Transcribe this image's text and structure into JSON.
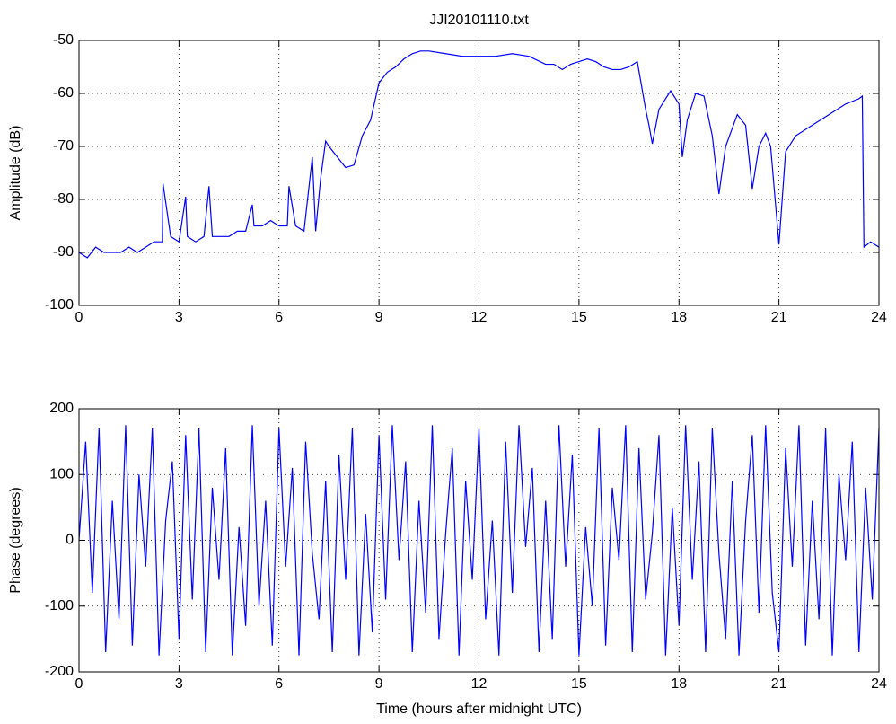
{
  "chart_data": [
    {
      "type": "line",
      "title": "JJI20101110.txt",
      "ylabel": "Amplitude (dB)",
      "color": "#0000ff",
      "grid": true,
      "x": [
        0,
        0.25,
        0.5,
        0.75,
        1,
        1.25,
        1.5,
        1.75,
        2,
        2.25,
        2.5,
        2.52,
        2.75,
        3,
        3.2,
        3.25,
        3.5,
        3.75,
        3.9,
        4,
        4.25,
        4.5,
        4.75,
        5,
        5.2,
        5.25,
        5.5,
        5.75,
        6,
        6.25,
        6.3,
        6.5,
        6.75,
        7,
        7.1,
        7.25,
        7.4,
        7.5,
        7.75,
        8,
        8.25,
        8.5,
        8.75,
        9,
        9.25,
        9.5,
        9.75,
        10,
        10.25,
        10.5,
        11,
        11.5,
        12,
        12.5,
        13,
        13.5,
        14,
        14.25,
        14.5,
        14.75,
        15,
        15.25,
        15.5,
        15.75,
        16,
        16.25,
        16.5,
        16.75,
        17,
        17.1,
        17.2,
        17.4,
        17.75,
        18,
        18.1,
        18.25,
        18.5,
        18.75,
        19,
        19.2,
        19.4,
        19.75,
        20,
        20.2,
        20.4,
        20.6,
        20.75,
        21,
        21.2,
        21.5,
        22,
        22.5,
        23,
        23.4,
        23.5,
        23.55,
        23.75,
        24
      ],
      "values": [
        -90,
        -91,
        -89,
        -90,
        -90,
        -90,
        -89,
        -90,
        -89,
        -88,
        -88,
        -77,
        -87,
        -88,
        -79.5,
        -87,
        -88,
        -87,
        -77.5,
        -87,
        -87,
        -87,
        -86,
        -86,
        -81,
        -85,
        -85,
        -84,
        -85,
        -85,
        -77.5,
        -85,
        -86,
        -72,
        -86,
        -76,
        -69,
        -70,
        -72,
        -74,
        -73.5,
        -68,
        -65,
        -58,
        -56,
        -55,
        -53.5,
        -52.5,
        -52,
        -52,
        -52.5,
        -53,
        -53,
        -53,
        -52.5,
        -53,
        -54.5,
        -54.5,
        -55.5,
        -54.5,
        -54,
        -53.5,
        -54,
        -55,
        -55.5,
        -55.5,
        -55,
        -54,
        -63,
        -66,
        -69.5,
        -63,
        -59.5,
        -62,
        -72,
        -65,
        -60,
        -60.5,
        -68,
        -79,
        -70,
        -64,
        -66,
        -78,
        -70,
        -67.5,
        -70,
        -88.5,
        -71,
        -68,
        -66,
        -64,
        -62,
        -61,
        -60.5,
        -89,
        -88,
        -89
      ],
      "xlim": [
        0,
        24
      ],
      "xticks": [
        0,
        3,
        6,
        9,
        12,
        15,
        18,
        21,
        24
      ],
      "ylim": [
        -100,
        -50
      ],
      "yticks": [
        -100,
        -90,
        -80,
        -70,
        -60,
        -50
      ]
    },
    {
      "type": "line",
      "ylabel": "Phase (degrees)",
      "xlabel": "Time (hours after midnight UTC)",
      "color": "#0000ff",
      "grid": true,
      "x": [
        0,
        0.2,
        0.4,
        0.6,
        0.8,
        1,
        1.2,
        1.4,
        1.6,
        1.8,
        2,
        2.2,
        2.4,
        2.6,
        2.8,
        3,
        3.2,
        3.4,
        3.6,
        3.8,
        4,
        4.2,
        4.4,
        4.6,
        4.8,
        5,
        5.2,
        5.4,
        5.6,
        5.8,
        6,
        6.2,
        6.4,
        6.6,
        6.8,
        7,
        7.2,
        7.4,
        7.6,
        7.8,
        8,
        8.2,
        8.4,
        8.6,
        8.8,
        9,
        9.2,
        9.4,
        9.6,
        9.8,
        10,
        10.2,
        10.4,
        10.6,
        10.8,
        11,
        11.2,
        11.4,
        11.6,
        11.8,
        12,
        12.2,
        12.4,
        12.6,
        12.8,
        13,
        13.2,
        13.4,
        13.6,
        13.8,
        14,
        14.2,
        14.4,
        14.6,
        14.8,
        15,
        15.2,
        15.4,
        15.6,
        15.8,
        16,
        16.2,
        16.4,
        16.6,
        16.8,
        17,
        17.2,
        17.4,
        17.6,
        17.8,
        18,
        18.2,
        18.4,
        18.6,
        18.8,
        19,
        19.2,
        19.4,
        19.6,
        19.8,
        20,
        20.2,
        20.4,
        20.6,
        20.8,
        21,
        21.2,
        21.4,
        21.6,
        21.8,
        22,
        22.2,
        22.4,
        22.6,
        22.8,
        23,
        23.2,
        23.4,
        23.6,
        23.8,
        24
      ],
      "values": [
        0,
        150,
        -80,
        170,
        -170,
        60,
        -120,
        175,
        -160,
        100,
        -40,
        170,
        -175,
        30,
        120,
        -150,
        160,
        -90,
        170,
        -170,
        80,
        -60,
        140,
        -175,
        20,
        -130,
        175,
        -100,
        60,
        -160,
        170,
        -40,
        110,
        -175,
        150,
        -20,
        -120,
        90,
        -170,
        130,
        -60,
        170,
        -175,
        40,
        -140,
        160,
        -90,
        175,
        -30,
        120,
        -170,
        60,
        -110,
        175,
        -150,
        10,
        140,
        -175,
        90,
        -60,
        170,
        -120,
        30,
        -175,
        150,
        -80,
        175,
        -10,
        110,
        -170,
        60,
        -150,
        175,
        -40,
        130,
        -175,
        20,
        -100,
        170,
        -160,
        80,
        -30,
        175,
        -170,
        140,
        -90,
        10,
        160,
        -175,
        50,
        -130,
        175,
        -60,
        120,
        -170,
        170,
        -20,
        -150,
        90,
        -175,
        30,
        160,
        -110,
        175,
        -80,
        -170,
        140,
        -40,
        175,
        -160,
        60,
        -120,
        170,
        -175,
        100,
        -30,
        150,
        -170,
        80,
        -90,
        170
      ],
      "xlim": [
        0,
        24
      ],
      "xticks": [
        0,
        3,
        6,
        9,
        12,
        15,
        18,
        21,
        24
      ],
      "ylim": [
        -200,
        200
      ],
      "yticks": [
        -200,
        -100,
        0,
        100,
        200
      ]
    }
  ]
}
